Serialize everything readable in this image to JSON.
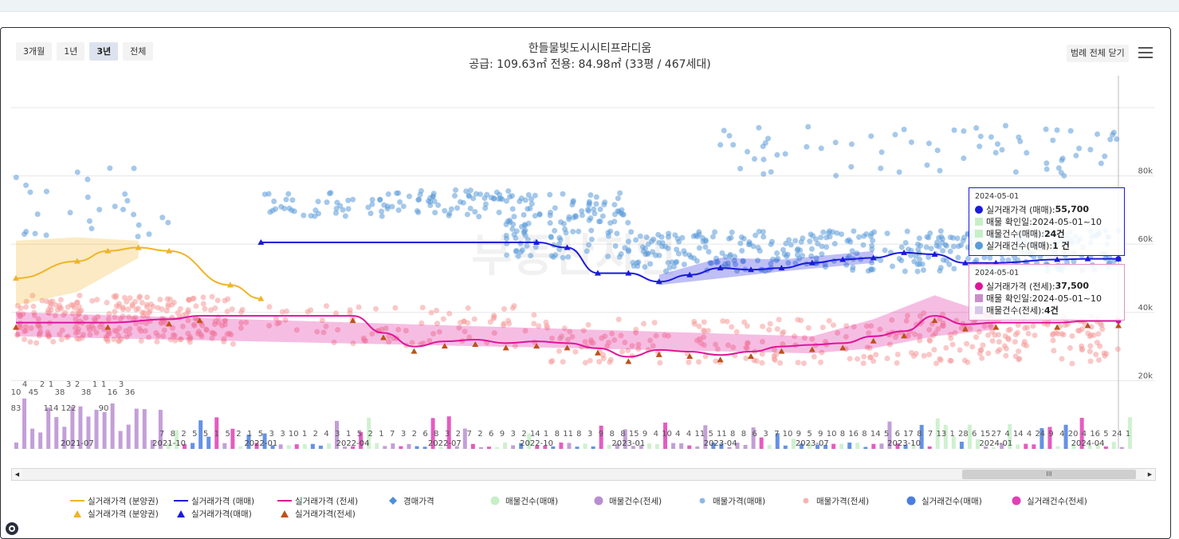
{
  "range_buttons": [
    "3개월",
    "1년",
    "3년",
    "전체"
  ],
  "active_range": "3년",
  "title": "한들물빛도시시티프라디움",
  "subtitle": "공급: 109.63㎡ 전용: 84.98㎡ (33평 / 467세대)",
  "legend_toggle_label": "범례 전체 닫기",
  "watermark": "부동산지인",
  "colors": {
    "presale_line": "#f0b429",
    "sale_line": "#1a1adb",
    "jeonse_line": "#e0139b",
    "sale_dots": "#5b9bd9",
    "jeonse_dots": "#f59a9a",
    "auction": "#4a90d9",
    "listing_count_sale": "#c7efc7",
    "listing_count_jeonse": "#b88ed0",
    "deal_count_sale": "#4a7fe0",
    "deal_count_jeonse": "#e03fb5",
    "presale_tri": "#f0b429",
    "sale_tri": "#1a1adb",
    "jeonse_tri": "#c0501a"
  },
  "chart_data": {
    "type": "line",
    "x_ticks": [
      "2021-07",
      "2021-10",
      "2022-01",
      "2022-04",
      "2022-07",
      "2022-10",
      "2023-01",
      "2023-04",
      "2023-07",
      "2023-10",
      "2024-01",
      "2024-04"
    ],
    "y_ticks": [
      "20k",
      "40k",
      "60k",
      "80k"
    ],
    "ylim": [
      0,
      100000
    ],
    "series": [
      {
        "name": "실거래가격 (분양권)",
        "style": "line",
        "color": "#f0b429",
        "points": [
          [
            "2021-05",
            50000
          ],
          [
            "2021-07",
            55000
          ],
          [
            "2021-08",
            58000
          ],
          [
            "2021-09",
            59000
          ],
          [
            "2021-10",
            58000
          ],
          [
            "2021-12",
            48000
          ],
          [
            "2022-01",
            44000
          ]
        ],
        "band": [
          [
            "2021-05",
            42000,
            61000
          ],
          [
            "2021-07",
            46000,
            62000
          ],
          [
            "2021-09",
            56000,
            61000
          ]
        ]
      },
      {
        "name": "실거래가격 (매매)",
        "style": "line",
        "color": "#1a1adb",
        "points": [
          [
            "2022-01",
            60500
          ],
          [
            "2022-10",
            60500
          ],
          [
            "2022-11",
            59000
          ],
          [
            "2022-12",
            51500
          ],
          [
            "2023-01",
            51500
          ],
          [
            "2023-02",
            49000
          ],
          [
            "2023-03",
            51000
          ],
          [
            "2023-04",
            53000
          ],
          [
            "2023-05",
            52500
          ],
          [
            "2023-06",
            53000
          ],
          [
            "2023-07",
            54500
          ],
          [
            "2023-08",
            55500
          ],
          [
            "2023-09",
            56000
          ],
          [
            "2023-10",
            57500
          ],
          [
            "2023-11",
            57000
          ],
          [
            "2023-12",
            54500
          ],
          [
            "2024-01",
            54500
          ],
          [
            "2024-03",
            55500
          ],
          [
            "2024-04",
            55700
          ],
          [
            "2024-05",
            55700
          ]
        ],
        "band": [
          [
            "2023-02",
            48000,
            51000
          ],
          [
            "2023-04",
            50000,
            56000
          ],
          [
            "2023-06",
            52000,
            55500
          ],
          [
            "2023-09",
            54500,
            58000
          ]
        ]
      },
      {
        "name": "실거래가격 (전세)",
        "style": "line",
        "color": "#e0139b",
        "points": [
          [
            "2021-05",
            37000
          ],
          [
            "2021-08",
            37000
          ],
          [
            "2021-10",
            38000
          ],
          [
            "2021-11",
            39000
          ],
          [
            "2022-04",
            39000
          ],
          [
            "2022-05",
            34000
          ],
          [
            "2022-06",
            30000
          ],
          [
            "2022-07",
            31500
          ],
          [
            "2022-08",
            32000
          ],
          [
            "2022-09",
            31000
          ],
          [
            "2022-10",
            31500
          ],
          [
            "2022-11",
            31000
          ],
          [
            "2022-12",
            29500
          ],
          [
            "2023-01",
            27000
          ],
          [
            "2023-02",
            29000
          ],
          [
            "2023-03",
            28500
          ],
          [
            "2023-04",
            27500
          ],
          [
            "2023-05",
            28500
          ],
          [
            "2023-06",
            30000
          ],
          [
            "2023-07",
            30500
          ],
          [
            "2023-08",
            31000
          ],
          [
            "2023-09",
            33000
          ],
          [
            "2023-10",
            34500
          ],
          [
            "2023-11",
            39000
          ],
          [
            "2023-12",
            36500
          ],
          [
            "2024-01",
            37000
          ],
          [
            "2024-03",
            37000
          ],
          [
            "2024-04",
            37500
          ],
          [
            "2024-05",
            37500
          ]
        ],
        "band": [
          [
            "2021-05",
            33000,
            40000
          ],
          [
            "2023-07",
            28000,
            33000
          ],
          [
            "2023-09",
            29500,
            38000
          ],
          [
            "2023-11",
            33000,
            45000
          ],
          [
            "2024-01",
            35000,
            39000
          ]
        ]
      }
    ],
    "count_bar_labels": [
      {
        "x": "2021-05",
        "labels": [
          "10",
          "83"
        ]
      },
      {
        "x": "2021-05",
        "labels": [
          "4"
        ]
      },
      {
        "x": "2021-06",
        "labels": [
          "45"
        ]
      },
      {
        "x": "2021-06",
        "labels": [
          "2"
        ]
      },
      {
        "x": "2021-06",
        "labels": [
          "1",
          "114"
        ]
      },
      {
        "x": "2021-07",
        "labels": [
          "38"
        ]
      },
      {
        "x": "2021-07",
        "labels": [
          "3",
          "122"
        ]
      },
      {
        "x": "2021-07",
        "labels": [
          "2"
        ]
      },
      {
        "x": "2021-08",
        "labels": [
          "38"
        ]
      },
      {
        "x": "2021-08",
        "labels": [
          "1"
        ]
      },
      {
        "x": "2021-09",
        "labels": [
          "1",
          "90"
        ]
      },
      {
        "x": "2021-09",
        "labels": [
          "16"
        ]
      },
      {
        "x": "2021-10",
        "labels": [
          "3"
        ]
      },
      {
        "x": "2021-10",
        "labels": [
          "36"
        ]
      }
    ],
    "count_row_labels": [
      "7",
      "8",
      "2",
      "5",
      "5",
      "1",
      "5",
      "2",
      "1",
      "5",
      "3",
      "3",
      "10",
      "1",
      "2",
      "4",
      "3",
      "1",
      "5",
      "2",
      "1",
      "7",
      "3",
      "2",
      "6",
      "8",
      "3",
      "2",
      "7",
      "2",
      "6",
      "9",
      "3",
      "2",
      "14",
      "1",
      "8",
      "11",
      "8",
      "3",
      "9",
      "8",
      "8",
      "15",
      "9",
      "4",
      "10",
      "4",
      "4",
      "11",
      "5",
      "11",
      "8",
      "8",
      "6",
      "3",
      "7",
      "10",
      "9",
      "5",
      "9",
      "10",
      "8",
      "16",
      "8",
      "14",
      "5",
      "6",
      "17",
      "8",
      "7",
      "13",
      "1",
      "28",
      "6",
      "15",
      "27",
      "4",
      "14",
      "4",
      "24",
      "9",
      "4",
      "20",
      "4",
      "16",
      "5",
      "24",
      "1"
    ]
  },
  "tooltip_sale": {
    "date": "2024-05-01",
    "rows": [
      {
        "label": "실거래가격 (매매): ",
        "value": "55,700"
      },
      {
        "label": "매물 확인일:2024-05-01~10",
        "value": ""
      },
      {
        "label": "매물건수(매매): ",
        "value": "24건"
      },
      {
        "label": "실거래건수(매매): ",
        "value": "1 건"
      }
    ]
  },
  "tooltip_jeonse": {
    "date": "2024-05-01",
    "rows": [
      {
        "label": "실거래가격 (전세): ",
        "value": "37,500"
      },
      {
        "label": "매물 확인일:2024-05-01~10",
        "value": ""
      },
      {
        "label": "매물건수(전세): ",
        "value": "4건"
      }
    ]
  },
  "legend": [
    {
      "label": "실거래가격 (분양권)",
      "symbol": "line",
      "color": "#f0b429"
    },
    {
      "label": "실거래가격 (매매)",
      "symbol": "line",
      "color": "#1a1adb"
    },
    {
      "label": "실거래가격 (전세)",
      "symbol": "line",
      "color": "#e0139b"
    },
    {
      "label": "경매가격",
      "symbol": "diamond",
      "color": "#4a90d9"
    },
    {
      "label": "매물건수(매매)",
      "symbol": "circle",
      "color": "#c7efc7"
    },
    {
      "label": "매물건수(전세)",
      "symbol": "circle",
      "color": "#b88ed0"
    },
    {
      "label": "매물가격(매매)",
      "symbol": "dot",
      "color": "#8fb8e3"
    },
    {
      "label": "매물가격(전세)",
      "symbol": "dot",
      "color": "#f5b3b3"
    },
    {
      "label": "실거래건수(매매)",
      "symbol": "circle",
      "color": "#4a7fe0"
    },
    {
      "label": "실거래건수(전세)",
      "symbol": "circle",
      "color": "#e03fb5"
    },
    {
      "label": "실거래가격 (분양권)",
      "symbol": "triangle",
      "color": "#f0b429"
    },
    {
      "label": "실거래가격(매매)",
      "symbol": "triangle",
      "color": "#1a1adb"
    },
    {
      "label": "실거래가격(전세)",
      "symbol": "triangle",
      "color": "#c0501a"
    }
  ],
  "scroll_thumb_label": "III"
}
